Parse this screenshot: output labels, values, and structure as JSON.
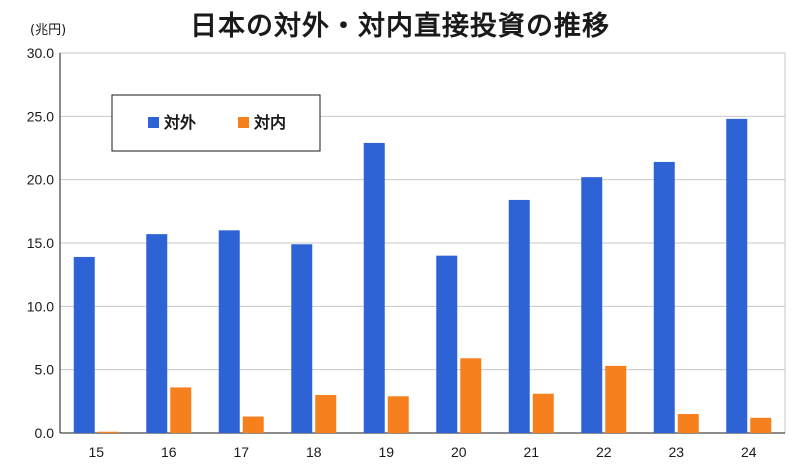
{
  "chart_data": {
    "type": "bar",
    "title": "日本の対外・対内直接投資の推移",
    "unit_label": "(兆円)",
    "categories": [
      "15",
      "16",
      "17",
      "18",
      "19",
      "20",
      "21",
      "22",
      "23",
      "24"
    ],
    "series": [
      {
        "name": "対外",
        "color": "#2e63d6",
        "values": [
          13.9,
          15.7,
          16.0,
          14.9,
          22.9,
          14.0,
          18.4,
          20.2,
          21.4,
          24.8
        ]
      },
      {
        "name": "対内",
        "color": "#f7801e",
        "values": [
          0.1,
          3.6,
          1.3,
          3.0,
          2.9,
          5.9,
          3.1,
          5.3,
          1.5,
          1.2
        ]
      }
    ],
    "yticks": [
      "0.0",
      "5.0",
      "10.0",
      "15.0",
      "20.0",
      "25.0",
      "30.0"
    ],
    "ylim": [
      0,
      30
    ],
    "grid": true,
    "legend_position": "top-left"
  }
}
